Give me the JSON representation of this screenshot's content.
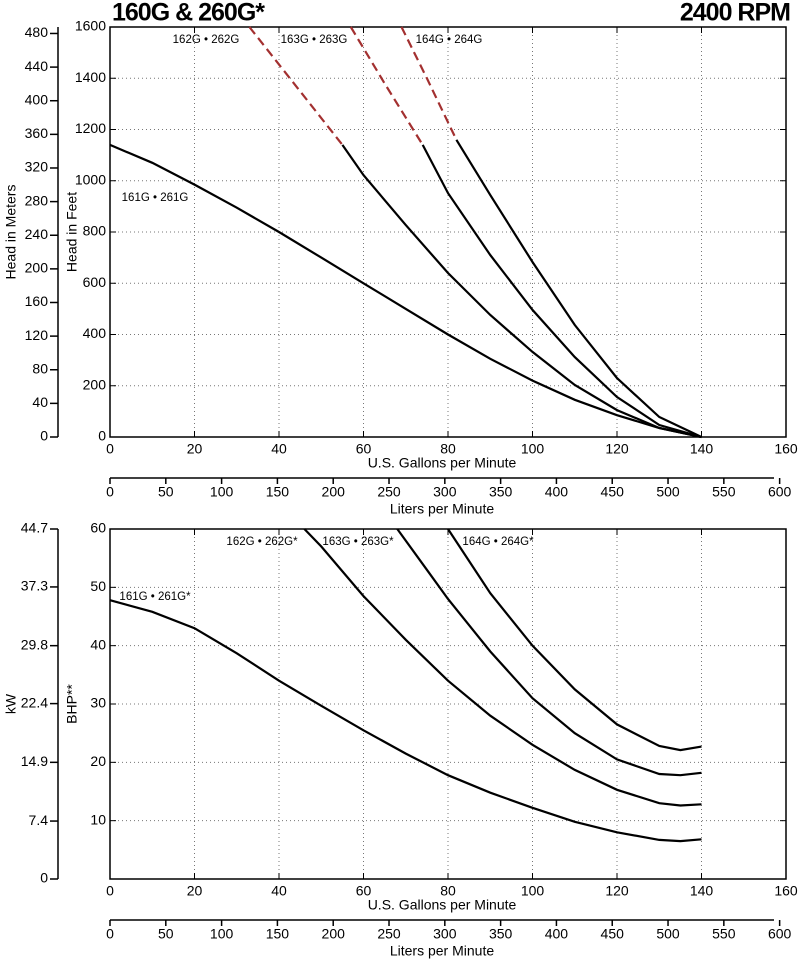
{
  "chart_data": [
    {
      "type": "line",
      "title": "160G & 260G*",
      "subtitle": "2400 RPM",
      "xlabel": "U.S. Gallons per Minute",
      "x2label": "Liters per Minute",
      "ylabel": "Head in Feet",
      "y2label": "Head in Meters",
      "xlim": [
        0,
        160
      ],
      "xticks": [
        0,
        20,
        40,
        60,
        80,
        100,
        120,
        140,
        160
      ],
      "x2lim": [
        0,
        605.7
      ],
      "x2ticks": [
        0,
        50,
        100,
        150,
        200,
        250,
        300,
        350,
        400,
        450,
        500,
        550,
        600
      ],
      "ylim": [
        0,
        1600
      ],
      "yticks": [
        0,
        200,
        400,
        600,
        800,
        1000,
        1200,
        1400,
        1600
      ],
      "y2lim": [
        0,
        487.7
      ],
      "y2ticks": [
        0,
        40,
        80,
        120,
        160,
        200,
        240,
        280,
        320,
        360,
        400,
        440,
        480
      ],
      "grid": true,
      "series": [
        {
          "name": "161G • 261G",
          "color": "#000000",
          "x": [
            0,
            10,
            20,
            30,
            40,
            50,
            60,
            70,
            80,
            90,
            100,
            110,
            120,
            130,
            140
          ],
          "values": [
            1140,
            1070,
            985,
            895,
            800,
            700,
            600,
            500,
            400,
            305,
            220,
            145,
            85,
            35,
            0
          ]
        },
        {
          "color": "#a33030",
          "dashed": true,
          "x": [
            33,
            44,
            55
          ],
          "values": [
            1600,
            1370,
            1140
          ]
        },
        {
          "name": "162G • 262G",
          "color": "#000000",
          "x": [
            55,
            60,
            70,
            80,
            90,
            100,
            110,
            120,
            130,
            140
          ],
          "values": [
            1140,
            1022,
            827,
            640,
            476,
            332,
            203,
            105,
            35,
            0
          ]
        },
        {
          "color": "#a33030",
          "dashed": true,
          "x": [
            57,
            65,
            74
          ],
          "values": [
            1600,
            1380,
            1140
          ]
        },
        {
          "name": "163G • 263G",
          "color": "#000000",
          "x": [
            74,
            80,
            90,
            100,
            110,
            120,
            130,
            140
          ],
          "values": [
            1140,
            952,
            710,
            496,
            312,
            156,
            47,
            0
          ]
        },
        {
          "color": "#a33030",
          "dashed": true,
          "x": [
            69,
            75,
            82
          ],
          "values": [
            1600,
            1400,
            1160
          ]
        },
        {
          "name": "164G • 264G",
          "color": "#000000",
          "x": [
            82,
            90,
            100,
            110,
            120,
            130,
            140
          ],
          "values": [
            1160,
            944,
            683,
            437,
            230,
            78,
            0
          ]
        }
      ]
    },
    {
      "type": "line",
      "xlabel": "U.S. Gallons per Minute",
      "x2label": "Liters per Minute",
      "ylabel": "BHP**",
      "y2label": "kW",
      "xlim": [
        0,
        160
      ],
      "xticks": [
        0,
        20,
        40,
        60,
        80,
        100,
        120,
        140,
        160
      ],
      "x2lim": [
        0,
        605.7
      ],
      "x2ticks": [
        0,
        50,
        100,
        150,
        200,
        250,
        300,
        350,
        400,
        450,
        500,
        550,
        600
      ],
      "ylim": [
        0,
        60
      ],
      "yticks": [
        10,
        20,
        30,
        40,
        50,
        60
      ],
      "y2lim": [
        0,
        44.7
      ],
      "y2ticks": [
        0,
        7.4,
        14.9,
        22.4,
        29.8,
        37.3,
        44.7
      ],
      "grid": true,
      "series": [
        {
          "name": "161G • 261G*",
          "color": "#000000",
          "x": [
            0,
            10,
            20,
            30,
            40,
            50,
            60,
            70,
            80,
            90,
            100,
            110,
            120,
            130,
            135,
            140
          ],
          "values": [
            47.8,
            45.8,
            43,
            38.7,
            34,
            29.7,
            25.5,
            21.5,
            17.8,
            14.8,
            12.2,
            9.8,
            8,
            6.7,
            6.5,
            6.8
          ]
        },
        {
          "name": "162G • 262G*",
          "color": "#000000",
          "x": [
            46,
            50,
            60,
            70,
            80,
            90,
            100,
            110,
            120,
            130,
            135,
            140
          ],
          "values": [
            60,
            57,
            48.5,
            41,
            34,
            28,
            23,
            18.7,
            15.3,
            13,
            12.6,
            12.8
          ]
        },
        {
          "name": "163G • 263G*",
          "color": "#000000",
          "x": [
            68,
            75,
            80,
            90,
            100,
            110,
            120,
            130,
            135,
            140
          ],
          "values": [
            60,
            53,
            48,
            39,
            31,
            25,
            20.5,
            18,
            17.8,
            18.2
          ]
        },
        {
          "name": "164G • 264G*",
          "color": "#000000",
          "x": [
            80,
            90,
            100,
            110,
            120,
            130,
            135,
            140
          ],
          "values": [
            60,
            49,
            40,
            32.5,
            26.5,
            22.8,
            22.1,
            22.7
          ]
        }
      ]
    }
  ]
}
